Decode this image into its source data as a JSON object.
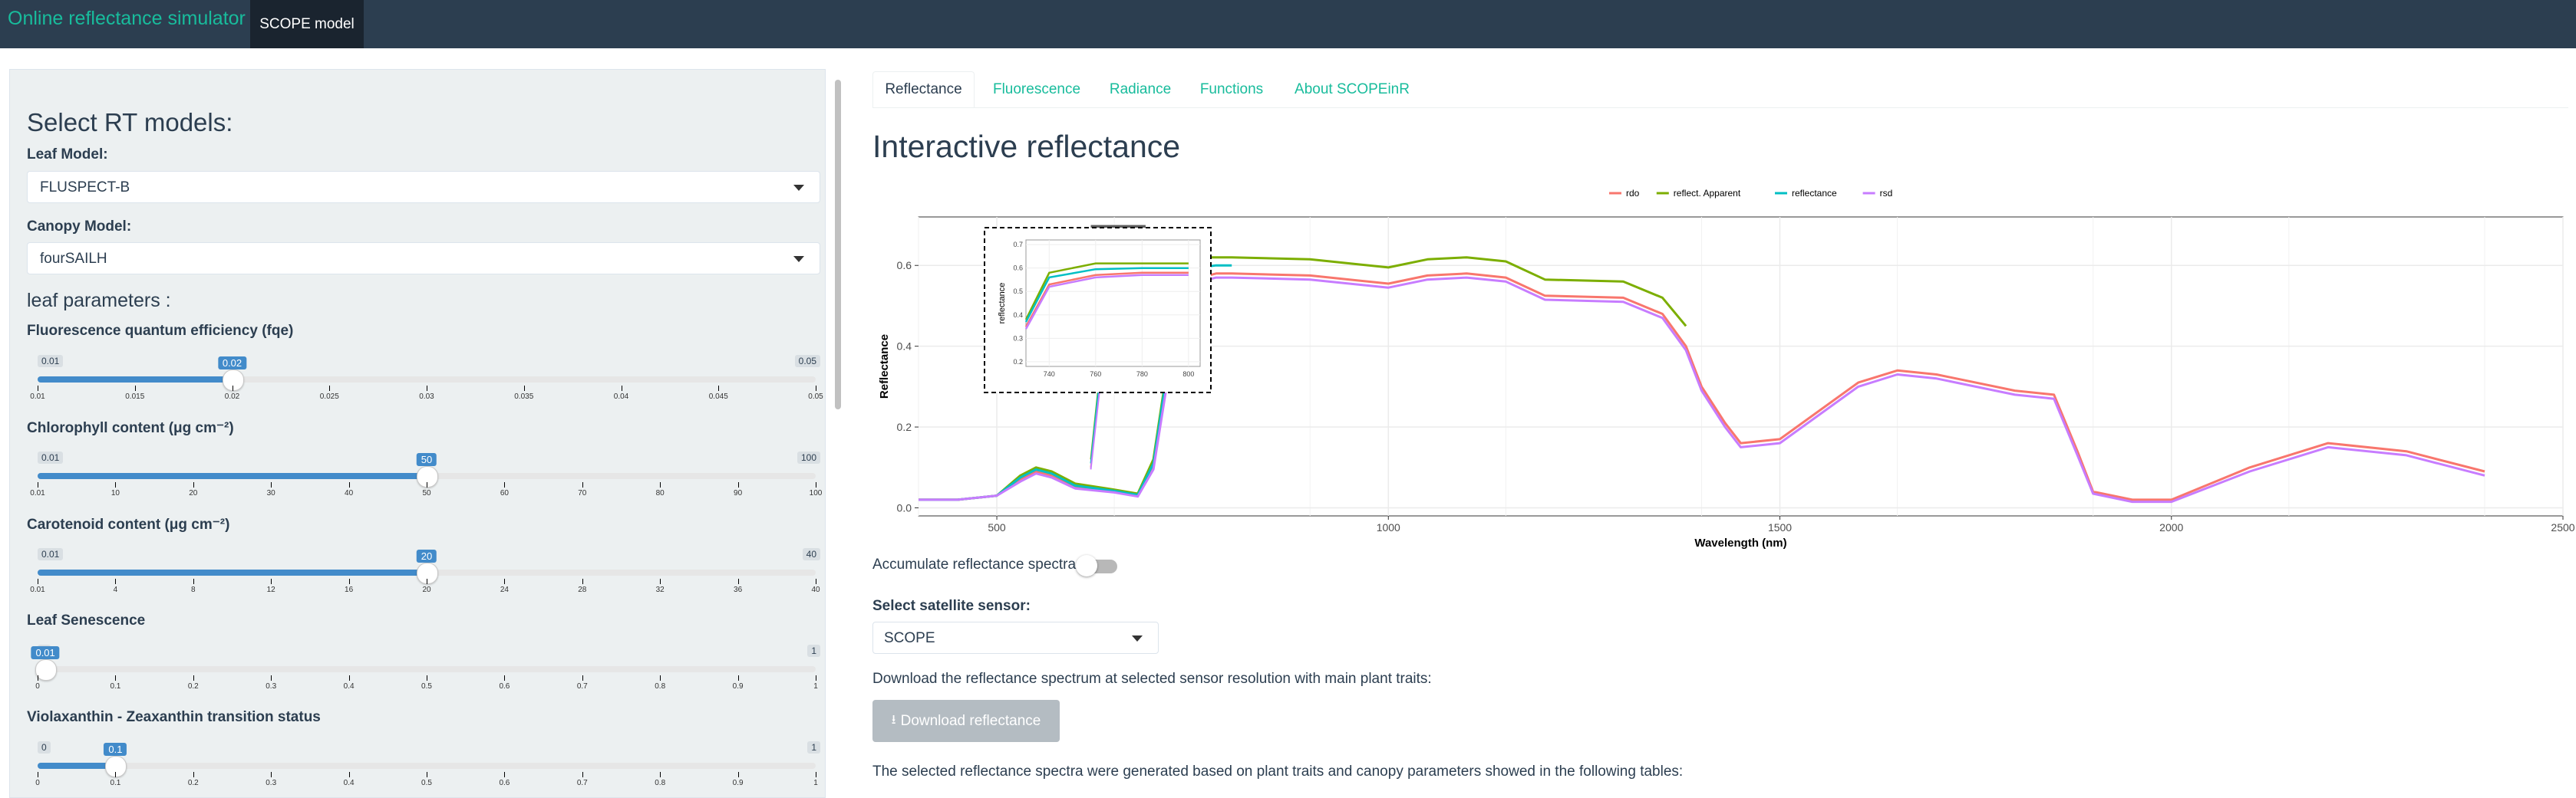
{
  "navbar": {
    "brand": "Online reflectance simulator",
    "tab": "SCOPE model"
  },
  "sidebar": {
    "title": "Select RT models:",
    "leaf_model": {
      "label": "Leaf Model:",
      "value": "FLUSPECT-B"
    },
    "canopy_model": {
      "label": "Canopy Model:",
      "value": "fourSAILH"
    },
    "leaf_params_heading": "leaf parameters :",
    "sliders": [
      {
        "label": "Fluorescence quantum efficiency (fqe)",
        "min": "0.01",
        "max": "0.05",
        "value": "0.02",
        "fraction": 0.25,
        "ticks": [
          "0.01",
          "0.015",
          "0.02",
          "0.025",
          "0.03",
          "0.035",
          "0.04",
          "0.045",
          "0.05"
        ]
      },
      {
        "label": "Chlorophyll content (μg cm⁻²)",
        "min": "0.01",
        "max": "100",
        "value": "50",
        "fraction": 0.5,
        "ticks": [
          "0.01",
          "10",
          "20",
          "30",
          "40",
          "50",
          "60",
          "70",
          "80",
          "90",
          "100"
        ]
      },
      {
        "label": "Carotenoid content (μg cm⁻²)",
        "min": "0.01",
        "max": "40",
        "value": "20",
        "fraction": 0.5,
        "ticks": [
          "0.01",
          "4",
          "8",
          "12",
          "16",
          "20",
          "24",
          "28",
          "32",
          "36",
          "40"
        ]
      },
      {
        "label": "Leaf Senescence",
        "min": "0",
        "max": "1",
        "value": "0.01",
        "fraction": 0.01,
        "ticks": [
          "0",
          "0.1",
          "0.2",
          "0.3",
          "0.4",
          "0.5",
          "0.6",
          "0.7",
          "0.8",
          "0.9",
          "1"
        ]
      },
      {
        "label": "Violaxanthin - Zeaxanthin transition status",
        "min": "0",
        "max": "1",
        "value": "0.1",
        "fraction": 0.1,
        "ticks": [
          "0",
          "0.1",
          "0.2",
          "0.3",
          "0.4",
          "0.5",
          "0.6",
          "0.7",
          "0.8",
          "0.9",
          "1"
        ]
      }
    ]
  },
  "tabs": [
    "Reflectance",
    "Fluorescence",
    "Radiance",
    "Functions",
    "About SCOPEinR"
  ],
  "main": {
    "title": "Interactive reflectance",
    "accumulate_label": "Accumulate reflectance spectra",
    "accumulate_on": false,
    "sensor_label": "Select satellite sensor:",
    "sensor_value": "SCOPE",
    "download_text": "Download the reflectance spectrum at selected sensor resolution with main plant traits:",
    "download_button": "Download reflectance",
    "footer_text": "The selected reflectance spectra were generated based on plant traits and canopy parameters showed in the following tables:"
  },
  "chart_data": {
    "type": "line",
    "xlabel": "Wavelength (nm)",
    "ylabel": "Reflectance",
    "xlim": [
      400,
      2500
    ],
    "ylim": [
      -0.02,
      0.72
    ],
    "xticks": [
      500,
      1000,
      1500,
      2000,
      2500
    ],
    "yticks": [
      0.0,
      0.2,
      0.4,
      0.6
    ],
    "legend_position": "top",
    "series": [
      {
        "name": "rdo",
        "color": "#F8766D",
        "x": [
          400,
          450,
          500,
          530,
          550,
          570,
          600,
          650,
          680,
          700,
          720,
          740,
          760,
          780,
          800,
          900,
          1000,
          1050,
          1100,
          1150,
          1200,
          1300,
          1350,
          1380,
          1400,
          1430,
          1450,
          1500,
          1600,
          1650,
          1700,
          1800,
          1850,
          1880,
          1900,
          1950,
          2000,
          2100,
          2200,
          2300,
          2400
        ],
        "y": [
          0.02,
          0.02,
          0.03,
          0.07,
          0.09,
          0.08,
          0.05,
          0.04,
          0.03,
          0.1,
          0.35,
          0.53,
          0.57,
          0.58,
          0.58,
          0.575,
          0.555,
          0.575,
          0.58,
          0.57,
          0.525,
          0.52,
          0.48,
          0.4,
          0.3,
          0.21,
          0.16,
          0.17,
          0.31,
          0.34,
          0.33,
          0.29,
          0.28,
          0.14,
          0.04,
          0.02,
          0.02,
          0.1,
          0.16,
          0.14,
          0.09
        ]
      },
      {
        "name": "reflect. Apparent",
        "color": "#7CAE00",
        "x": [
          400,
          450,
          500,
          530,
          550,
          570,
          600,
          650,
          680,
          700,
          720,
          740,
          760,
          780,
          800,
          900,
          1000,
          1050,
          1100,
          1150,
          1200,
          1300,
          1350,
          1380
        ],
        "y": [
          0.02,
          0.02,
          0.03,
          0.08,
          0.1,
          0.09,
          0.06,
          0.045,
          0.035,
          0.12,
          0.38,
          0.58,
          0.62,
          0.62,
          0.62,
          0.615,
          0.595,
          0.615,
          0.62,
          0.61,
          0.565,
          0.56,
          0.52,
          0.45
        ]
      },
      {
        "name": "reflectance",
        "color": "#00BFC4",
        "x": [
          400,
          450,
          500,
          530,
          550,
          570,
          600,
          650,
          680,
          700,
          720,
          740,
          760,
          780,
          800
        ],
        "y": [
          0.02,
          0.02,
          0.03,
          0.075,
          0.095,
          0.085,
          0.055,
          0.042,
          0.032,
          0.11,
          0.37,
          0.56,
          0.595,
          0.6,
          0.6
        ]
      },
      {
        "name": "rsd",
        "color": "#C77CFF",
        "x": [
          400,
          450,
          500,
          530,
          550,
          570,
          600,
          650,
          680,
          700,
          720,
          740,
          760,
          780,
          800,
          900,
          1000,
          1050,
          1100,
          1150,
          1200,
          1300,
          1350,
          1380,
          1400,
          1430,
          1450,
          1500,
          1600,
          1650,
          1700,
          1800,
          1850,
          1880,
          1900,
          1950,
          2000,
          2100,
          2200,
          2300,
          2400
        ],
        "y": [
          0.02,
          0.02,
          0.03,
          0.065,
          0.085,
          0.075,
          0.048,
          0.038,
          0.028,
          0.095,
          0.34,
          0.52,
          0.56,
          0.57,
          0.57,
          0.565,
          0.545,
          0.565,
          0.57,
          0.56,
          0.515,
          0.51,
          0.47,
          0.39,
          0.29,
          0.2,
          0.15,
          0.16,
          0.3,
          0.33,
          0.32,
          0.28,
          0.27,
          0.13,
          0.035,
          0.015,
          0.015,
          0.09,
          0.15,
          0.13,
          0.08
        ]
      }
    ],
    "inset": {
      "ylabel": "reflectance",
      "xlim": [
        730,
        805
      ],
      "ylim": [
        0.18,
        0.72
      ],
      "xticks": [
        740,
        760,
        780,
        800
      ],
      "yticks": [
        0.2,
        0.3,
        0.4,
        0.5,
        0.6,
        0.7
      ]
    }
  }
}
